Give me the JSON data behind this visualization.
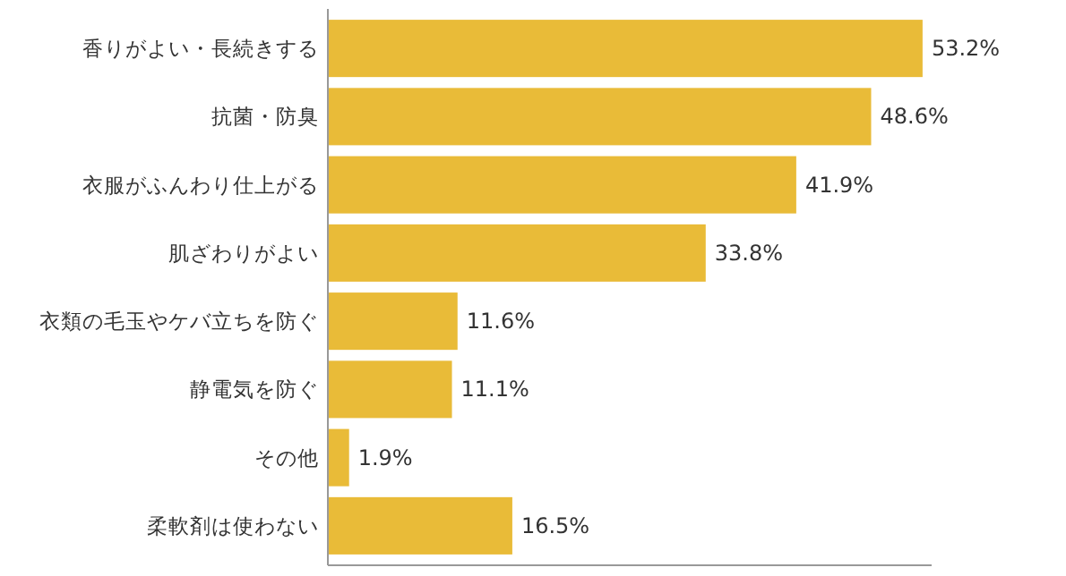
{
  "chart_data": {
    "type": "bar",
    "orientation": "horizontal",
    "categories": [
      "香りがよい・長続きする",
      "抗菌・防臭",
      "衣服がふんわり仕上がる",
      "肌ざわりがよい",
      "衣類の毛玉やケバ立ちを防ぐ",
      "静電気を防ぐ",
      "その他",
      "柔軟剤は使わない"
    ],
    "values": [
      53.2,
      48.6,
      41.9,
      33.8,
      11.6,
      11.1,
      1.9,
      16.5
    ],
    "value_labels": [
      "53.2%",
      "48.6%",
      "41.9%",
      "33.8%",
      "11.6%",
      "11.1%",
      "1.9%",
      "16.5%"
    ],
    "color": "#e9bb38"
  }
}
